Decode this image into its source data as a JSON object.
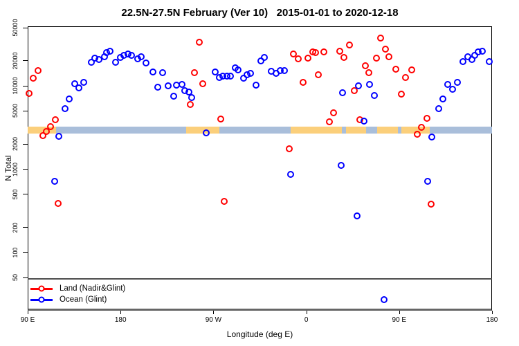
{
  "title": "22.5N-27.5N February (Ver 10)   2015-01-01 to 2020-12-18",
  "chart_data": {
    "type": "scatter",
    "title": "22.5N-27.5N February (Ver 10)   2015-01-01 to 2020-12-18",
    "xlabel": "Longitude (deg E)",
    "ylabel": "N Total",
    "y_scale": "log",
    "xlim": [
      90,
      540
    ],
    "ylim": [
      20,
      52000
    ],
    "grid": false,
    "x_ticks": [
      {
        "v": 90,
        "label": "90 E"
      },
      {
        "v": 180,
        "label": "180"
      },
      {
        "v": 270,
        "label": "90 W"
      },
      {
        "v": 360,
        "label": "0"
      },
      {
        "v": 450,
        "label": "90 E"
      },
      {
        "v": 540,
        "label": "180"
      }
    ],
    "y_ticks": [
      {
        "v": 50000,
        "label": "50000"
      },
      {
        "v": 20000,
        "label": "20000"
      },
      {
        "v": 10000,
        "label": "10000"
      },
      {
        "v": 5000,
        "label": "5000"
      },
      {
        "v": 2000,
        "label": "2000"
      },
      {
        "v": 1000,
        "label": "1000"
      },
      {
        "v": 500,
        "label": "500"
      },
      {
        "v": 200,
        "label": "200"
      },
      {
        "v": 100,
        "label": "100"
      },
      {
        "v": 50,
        "label": "50"
      }
    ],
    "refline": {
      "value": 48,
      "color": "#4d4d4d"
    },
    "map_band": {
      "description": "land/ocean strip along latitude band",
      "value_range": [
        2670,
        3250
      ],
      "land_color": "#FBCF7B",
      "ocean_color": "#A9BEDA",
      "segments": [
        {
          "from": 90,
          "to": 117.6,
          "type": "land"
        },
        {
          "from": 117.6,
          "to": 243.6,
          "type": "ocean"
        },
        {
          "from": 243.6,
          "to": 276,
          "type": "land"
        },
        {
          "from": 276,
          "to": 344.7,
          "type": "ocean"
        },
        {
          "from": 344.7,
          "to": 394.6,
          "type": "land"
        },
        {
          "from": 394.6,
          "to": 398.6,
          "type": "ocean"
        },
        {
          "from": 398.6,
          "to": 418.2,
          "type": "land"
        },
        {
          "from": 418.2,
          "to": 429,
          "type": "ocean"
        },
        {
          "from": 429,
          "to": 449,
          "type": "land"
        },
        {
          "from": 449,
          "to": 452,
          "type": "ocean"
        },
        {
          "from": 452,
          "to": 479.5,
          "type": "land"
        },
        {
          "from": 479.5,
          "to": 540,
          "type": "ocean"
        }
      ]
    },
    "legend": {
      "position": "bottom-left"
    },
    "series": [
      {
        "name": "Land (Nadir&Glint)",
        "color": "#ff0000",
        "points": [
          [
            91.6,
            8100
          ],
          [
            95.2,
            12400
          ],
          [
            100.3,
            15300
          ],
          [
            105,
            2550
          ],
          [
            108.4,
            2850
          ],
          [
            111.8,
            3270
          ],
          [
            116.7,
            3960
          ],
          [
            119.6,
            390
          ],
          [
            247.7,
            6000
          ],
          [
            251.5,
            14500
          ],
          [
            256.4,
            33400
          ],
          [
            259.8,
            10600
          ],
          [
            277.3,
            3990
          ],
          [
            280.7,
            410
          ],
          [
            343.5,
            1750
          ],
          [
            347.6,
            24400
          ],
          [
            351.9,
            21300
          ],
          [
            356.6,
            11000
          ],
          [
            361.5,
            21400
          ],
          [
            366,
            25800
          ],
          [
            368.9,
            25200
          ],
          [
            371.6,
            13700
          ],
          [
            376.8,
            25800
          ],
          [
            382.4,
            3700
          ],
          [
            386.6,
            4730
          ],
          [
            392.5,
            26200
          ],
          [
            396.3,
            21900
          ],
          [
            401.9,
            31300
          ],
          [
            406.4,
            8800
          ],
          [
            412,
            3960
          ],
          [
            417.1,
            17400
          ],
          [
            420.8,
            14400
          ],
          [
            427.7,
            21400
          ],
          [
            431.8,
            37700
          ],
          [
            437,
            27700
          ],
          [
            440.3,
            22400
          ],
          [
            447.1,
            15900
          ],
          [
            452.4,
            7960
          ],
          [
            456.5,
            12600
          ],
          [
            462.1,
            15500
          ],
          [
            467.7,
            2620
          ],
          [
            471.5,
            3190
          ],
          [
            477.2,
            4090
          ],
          [
            481,
            380
          ]
        ]
      },
      {
        "name": "Ocean (Glint)",
        "color": "#0000ff",
        "points": [
          [
            116.3,
            720
          ],
          [
            120.1,
            2470
          ],
          [
            126.4,
            5310
          ],
          [
            130.2,
            7000
          ],
          [
            135.8,
            10600
          ],
          [
            139.9,
            9390
          ],
          [
            144.1,
            11000
          ],
          [
            151.5,
            19400
          ],
          [
            155.3,
            21700
          ],
          [
            159.4,
            20600
          ],
          [
            164.3,
            22400
          ],
          [
            166.6,
            24900
          ],
          [
            170,
            25900
          ],
          [
            175.1,
            19100
          ],
          [
            179.6,
            21900
          ],
          [
            183.4,
            23100
          ],
          [
            187.5,
            24300
          ],
          [
            190.8,
            23400
          ],
          [
            196.4,
            21000
          ],
          [
            199.8,
            22400
          ],
          [
            204.5,
            18700
          ],
          [
            211.1,
            14800
          ],
          [
            216,
            9620
          ],
          [
            220.7,
            14500
          ],
          [
            226.1,
            10100
          ],
          [
            231.7,
            7480
          ],
          [
            234,
            10300
          ],
          [
            239.8,
            10400
          ],
          [
            242.5,
            8750
          ],
          [
            246.5,
            8470
          ],
          [
            248.8,
            7280
          ],
          [
            262.7,
            2710
          ],
          [
            271.7,
            14800
          ],
          [
            275.5,
            12600
          ],
          [
            278.8,
            13100
          ],
          [
            282.9,
            13000
          ],
          [
            286.2,
            13100
          ],
          [
            291.4,
            16400
          ],
          [
            294.1,
            15600
          ],
          [
            299.3,
            12300
          ],
          [
            302.7,
            13700
          ],
          [
            306,
            14100
          ],
          [
            311,
            10300
          ],
          [
            315.9,
            20000
          ],
          [
            319.5,
            21900
          ],
          [
            325.8,
            14900
          ],
          [
            330.5,
            14100
          ],
          [
            334.6,
            15200
          ],
          [
            338.6,
            15300
          ],
          [
            344.6,
            860
          ],
          [
            394,
            1110
          ],
          [
            395.2,
            8220
          ],
          [
            409.3,
            275
          ],
          [
            410.5,
            10000
          ],
          [
            416.1,
            3790
          ],
          [
            421,
            10400
          ],
          [
            426,
            7710
          ],
          [
            435.2,
            27
          ],
          [
            477.9,
            720
          ],
          [
            481.7,
            2440
          ],
          [
            488.4,
            5310
          ],
          [
            492.2,
            6970
          ],
          [
            496.9,
            10400
          ],
          [
            501.9,
            9100
          ],
          [
            506.8,
            11000
          ],
          [
            512.1,
            19500
          ],
          [
            516.5,
            22600
          ],
          [
            520.5,
            20600
          ],
          [
            523.2,
            23500
          ],
          [
            526.6,
            25400
          ],
          [
            530.6,
            26100
          ],
          [
            537,
            19600
          ]
        ]
      }
    ]
  }
}
